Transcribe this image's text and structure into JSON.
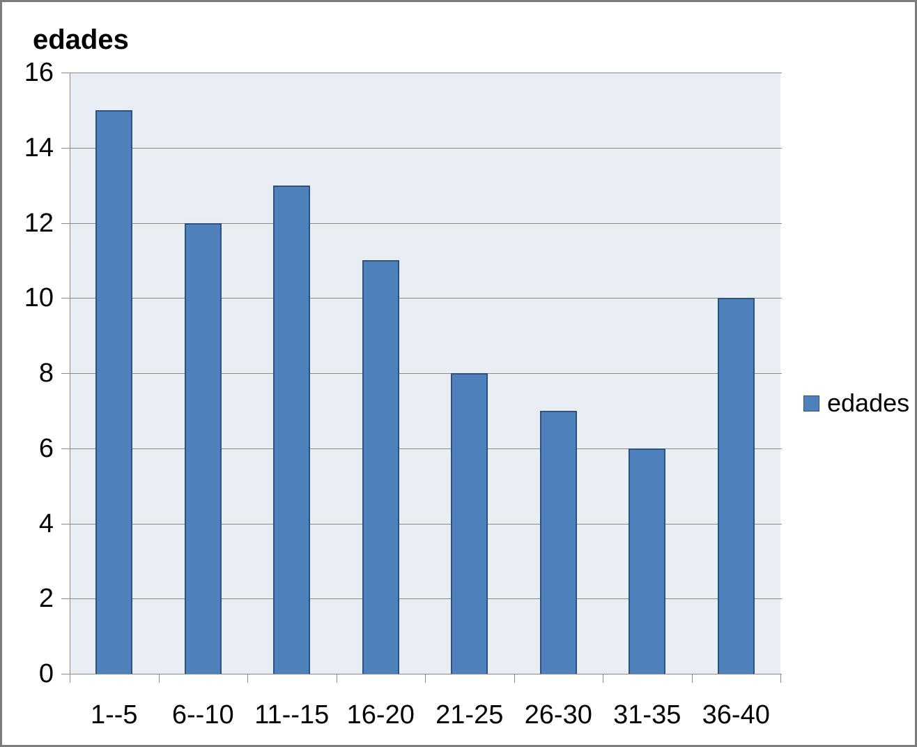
{
  "chart_data": {
    "type": "bar",
    "title": "edades",
    "categories": [
      "1--5",
      "6--10",
      "11--15",
      "16-20",
      "21-25",
      "26-30",
      "31-35",
      "36-40"
    ],
    "series": [
      {
        "name": "edades",
        "values": [
          15,
          12,
          13,
          11,
          8,
          7,
          6,
          10
        ]
      }
    ],
    "xlabel": "",
    "ylabel": "",
    "ylim": [
      0,
      16
    ],
    "yticks": [
      0,
      2,
      4,
      6,
      8,
      10,
      12,
      14,
      16
    ],
    "grid": true,
    "legend_position": "right",
    "colors": {
      "bar_fill": "#4f81bd",
      "bar_border": "#2e5180",
      "plot_bg": "#e9edf4",
      "gridline": "#8a8a8a",
      "axis_line": "#8a8a8a",
      "text": "#000000",
      "frame_border": "#7c7c7c"
    }
  },
  "legend": {
    "label": "edades"
  }
}
